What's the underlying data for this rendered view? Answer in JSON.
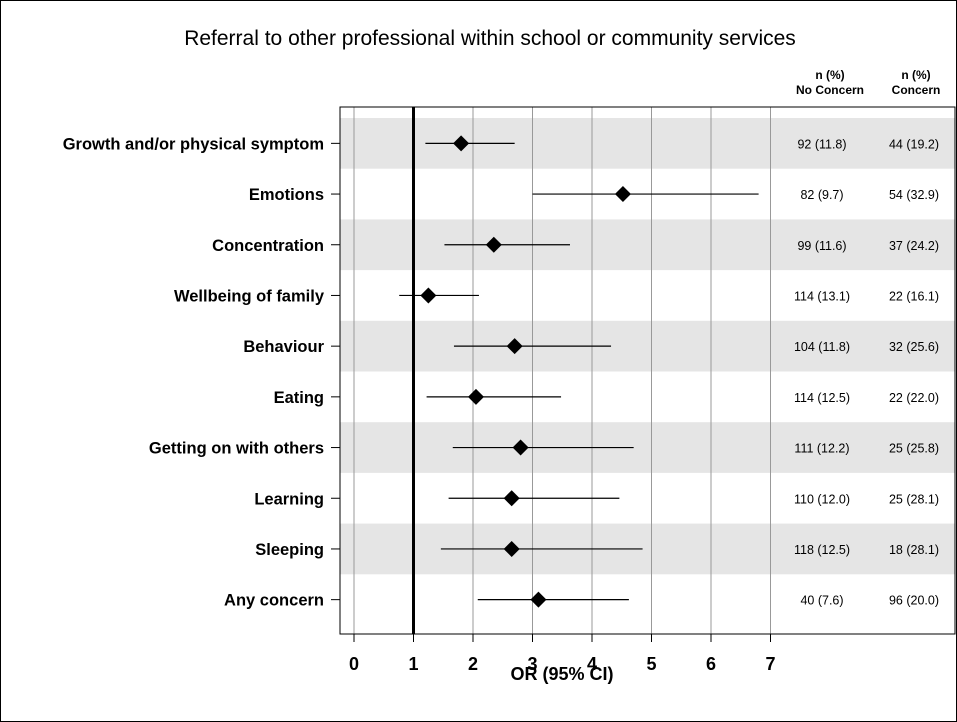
{
  "chart_data": {
    "type": "forest",
    "title": "Referral to other professional within school or community services",
    "xlabel": "OR (95% CI)",
    "xlim": [
      0,
      7
    ],
    "xticks": [
      0,
      1,
      2,
      3,
      4,
      5,
      6,
      7
    ],
    "reference_line": 1,
    "column_headers": [
      {
        "line1": "n (%)",
        "line2": "No Concern"
      },
      {
        "line1": "n (%)",
        "line2": "Concern"
      }
    ],
    "rows": [
      {
        "label": "Growth and/or physical symptom",
        "or": 1.8,
        "lo": 1.2,
        "hi": 2.7,
        "no_concern": "92 (11.8)",
        "concern": "44 (19.2)"
      },
      {
        "label": "Emotions",
        "or": 4.52,
        "lo": 3.0,
        "hi": 6.8,
        "no_concern": "82 (9.7)",
        "concern": "54 (32.9)"
      },
      {
        "label": "Concentration",
        "or": 2.35,
        "lo": 1.52,
        "hi": 3.63,
        "no_concern": "99 (11.6)",
        "concern": "37 (24.2)"
      },
      {
        "label": "Wellbeing of family",
        "or": 1.25,
        "lo": 0.76,
        "hi": 2.1,
        "no_concern": "114 (13.1)",
        "concern": "22 (16.1)"
      },
      {
        "label": "Behaviour",
        "or": 2.7,
        "lo": 1.68,
        "hi": 4.32,
        "no_concern": "104 (11.8)",
        "concern": "32 (25.6)"
      },
      {
        "label": "Eating",
        "or": 2.05,
        "lo": 1.22,
        "hi": 3.48,
        "no_concern": "114 (12.5)",
        "concern": "22 (22.0)"
      },
      {
        "label": "Getting on with others",
        "or": 2.8,
        "lo": 1.66,
        "hi": 4.7,
        "no_concern": "111 (12.2)",
        "concern": "25 (25.8)"
      },
      {
        "label": "Learning",
        "or": 2.65,
        "lo": 1.59,
        "hi": 4.46,
        "no_concern": "110 (12.0)",
        "concern": "25 (28.1)"
      },
      {
        "label": "Sleeping",
        "or": 2.65,
        "lo": 1.46,
        "hi": 4.85,
        "no_concern": "118 (12.5)",
        "concern": "18 (28.1)"
      },
      {
        "label": "Any concern",
        "or": 3.1,
        "lo": 2.08,
        "hi": 4.62,
        "no_concern": "40 (7.6)",
        "concern": "96 (20.0)"
      }
    ],
    "grid": true,
    "row_shading": "alternate",
    "colors": {
      "band": "#e5e5e5",
      "grid": "#999999",
      "marker": "#000000",
      "axis": "#000000"
    }
  }
}
